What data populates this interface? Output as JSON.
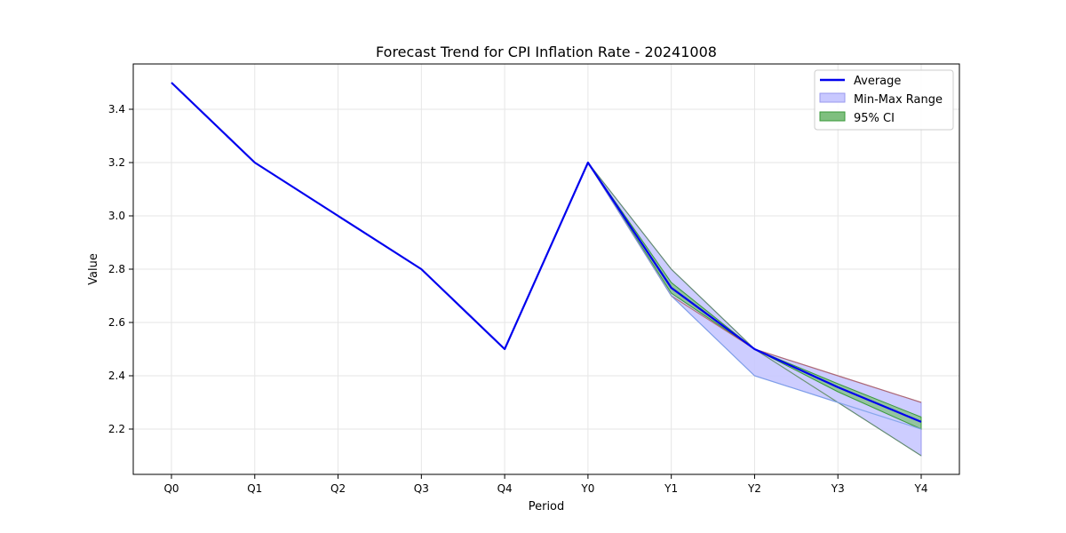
{
  "chart_data": {
    "type": "line",
    "title": "Forecast Trend for CPI Inflation Rate - 20241008",
    "xlabel": "Period",
    "ylabel": "Value",
    "categories": [
      "Q0",
      "Q1",
      "Q2",
      "Q3",
      "Q4",
      "Y0",
      "Y1",
      "Y2",
      "Y3",
      "Y4"
    ],
    "ylim": [
      2.03,
      3.57
    ],
    "yticks": [
      "2.2",
      "2.4",
      "2.6",
      "2.8",
      "3.0",
      "3.2",
      "3.4"
    ],
    "grid": true,
    "legend_position": "top-right",
    "series": [
      {
        "name": "Average",
        "values": [
          3.5,
          3.2,
          3.0,
          2.8,
          2.5,
          3.2,
          2.73,
          2.5,
          2.357,
          2.227
        ]
      }
    ],
    "bands": [
      {
        "name": "Min-Max Range",
        "start_index": 5,
        "lower": [
          3.2,
          2.7,
          2.4,
          2.3,
          2.1
        ],
        "upper": [
          3.2,
          2.8,
          2.5,
          2.4,
          2.3
        ]
      },
      {
        "name": "95% CI",
        "start_index": 5,
        "lower": [
          3.2,
          2.71,
          2.5,
          2.34,
          2.2
        ],
        "upper": [
          3.2,
          2.75,
          2.5,
          2.37,
          2.245
        ]
      }
    ],
    "forecast_lines": [
      {
        "start_index": 5,
        "values": [
          3.2,
          2.8,
          2.5,
          2.3,
          2.1
        ]
      },
      {
        "start_index": 5,
        "values": [
          3.2,
          2.7,
          2.5,
          2.4,
          2.3
        ]
      },
      {
        "start_index": 5,
        "values": [
          3.2,
          2.7,
          2.4,
          2.3,
          2.2
        ]
      }
    ],
    "colors": {
      "average": "#0000ee",
      "minmax_fill": "#c8c8ff",
      "minmax_edge": "#9999ee",
      "ci_fill": "#7fbf7f",
      "ci_edge": "#3a9a3a",
      "forecast_line_1": "#5a8a5a",
      "forecast_line_2": "#b06060",
      "forecast_line_3": "#7aa0e8"
    }
  }
}
